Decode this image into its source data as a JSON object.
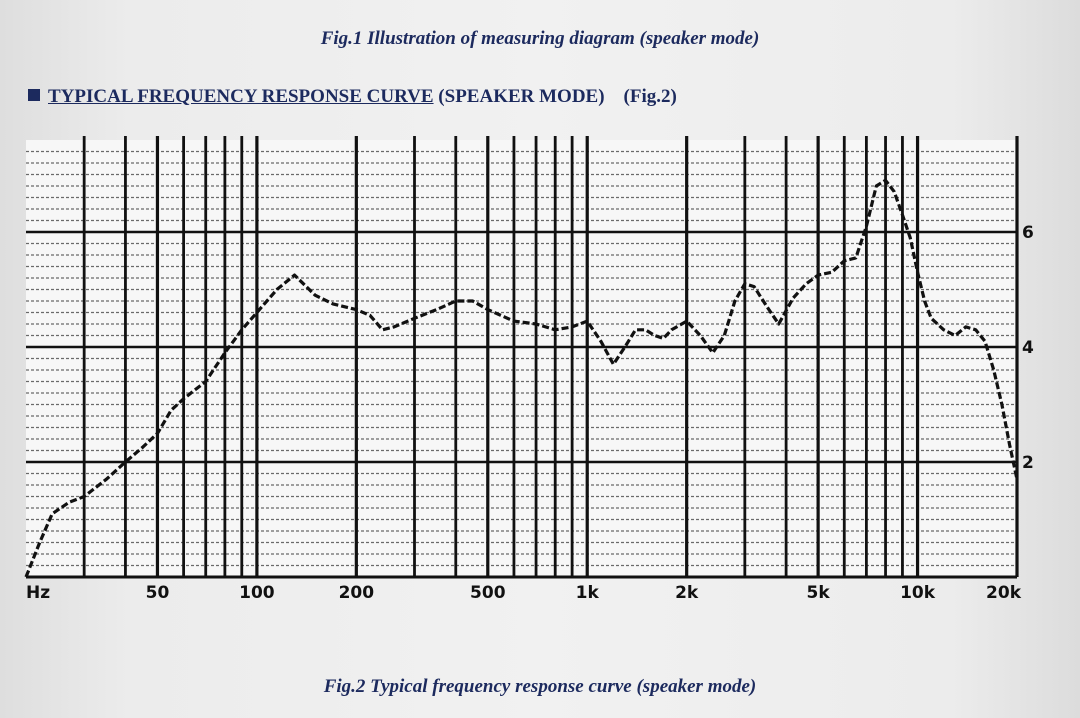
{
  "captions": {
    "top": "Fig.1 Illustration of measuring diagram (speaker mode)",
    "bottom": "Fig.2 Typical frequency response curve (speaker mode)"
  },
  "heading": {
    "underlined": "TYPICAL FREQUENCY RESPONSE CURVE",
    "rest": "(SPEAKER MODE)",
    "fig_ref": "(Fig.2)"
  },
  "chart_data": {
    "type": "line",
    "title": "",
    "xlabel": "",
    "ylabel": "",
    "x_scale": "log",
    "xlim": [
      20,
      20000
    ],
    "ylim": [
      0,
      7.6
    ],
    "grid": true,
    "x_tick_labels": [
      {
        "value": 20,
        "label": "Hz"
      },
      {
        "value": 50,
        "label": "50"
      },
      {
        "value": 100,
        "label": "100"
      },
      {
        "value": 200,
        "label": "200"
      },
      {
        "value": 500,
        "label": "500"
      },
      {
        "value": 1000,
        "label": "1k"
      },
      {
        "value": 2000,
        "label": "2k"
      },
      {
        "value": 5000,
        "label": "5k"
      },
      {
        "value": 10000,
        "label": "10k"
      },
      {
        "value": 20000,
        "label": "20k"
      }
    ],
    "y_tick_labels": [
      {
        "value": 2,
        "label": "2"
      },
      {
        "value": 4,
        "label": "4"
      },
      {
        "value": 6,
        "label": "6"
      }
    ],
    "series": [
      {
        "line_style": "dashed",
        "color": "#111111",
        "x": [
          20,
          22,
          24,
          27,
          30,
          35,
          40,
          45,
          50,
          55,
          60,
          70,
          80,
          90,
          100,
          115,
          130,
          150,
          170,
          200,
          220,
          240,
          260,
          300,
          350,
          400,
          450,
          500,
          600,
          700,
          800,
          900,
          1000,
          1100,
          1200,
          1300,
          1400,
          1500,
          1600,
          1700,
          1800,
          2000,
          2200,
          2400,
          2600,
          2800,
          3000,
          3200,
          3500,
          3800,
          4200,
          4600,
          5000,
          5500,
          6000,
          6500,
          7000,
          7500,
          8000,
          8500,
          9000,
          9500,
          10000,
          10500,
          11000,
          12000,
          13000,
          14000,
          15000,
          16000,
          17000,
          18000,
          19000,
          20000
        ],
        "y": [
          0,
          0.6,
          1.1,
          1.3,
          1.4,
          1.7,
          2.0,
          2.25,
          2.5,
          2.9,
          3.1,
          3.4,
          3.9,
          4.3,
          4.6,
          5.0,
          5.25,
          4.9,
          4.75,
          4.65,
          4.55,
          4.3,
          4.35,
          4.5,
          4.65,
          4.8,
          4.8,
          4.65,
          4.45,
          4.4,
          4.3,
          4.35,
          4.45,
          4.1,
          3.7,
          4.0,
          4.3,
          4.3,
          4.2,
          4.15,
          4.3,
          4.45,
          4.2,
          3.9,
          4.2,
          4.8,
          5.1,
          5.05,
          4.7,
          4.4,
          4.85,
          5.1,
          5.25,
          5.3,
          5.5,
          5.55,
          6.1,
          6.8,
          6.9,
          6.7,
          6.3,
          5.9,
          5.3,
          4.8,
          4.5,
          4.3,
          4.2,
          4.35,
          4.3,
          4.1,
          3.6,
          3.0,
          2.3,
          1.7
        ]
      }
    ]
  }
}
